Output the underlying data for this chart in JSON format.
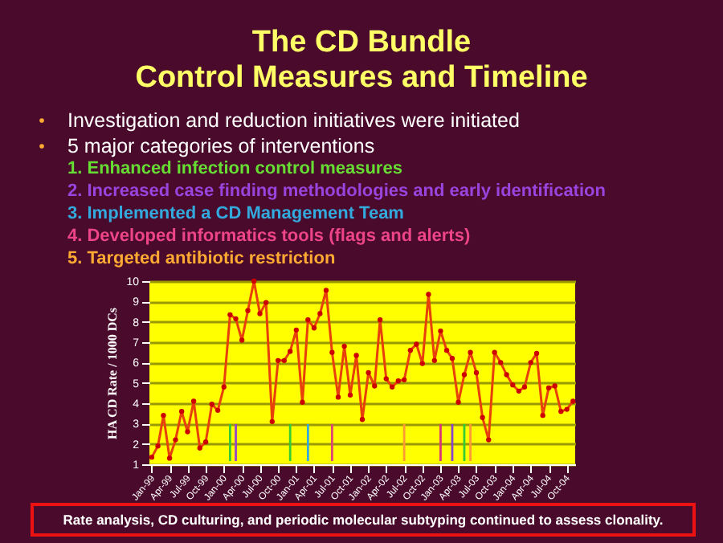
{
  "chart_data": {
    "type": "line",
    "title": "The CD Bundle\nControl Measures and Timeline",
    "ylabel": "HA CD Rate / 1000 DCs",
    "annotations": [
      "Investigation and reduction initiatives were initiated",
      "5 major categories of interventions",
      "1.   Enhanced infection control measures",
      "2.   Increased case finding methodologies and early identification",
      "3.   Implemented a CD Management Team",
      "4.   Developed informatics tools (flags and alerts)",
      "5.   Targeted antibiotic restriction",
      "Rate analysis, CD culturing, and periodic molecular subtyping continued to assess clonality."
    ],
    "x": [
      "1999-01",
      "1999-02",
      "1999-03",
      "1999-04",
      "1999-05",
      "1999-06",
      "1999-07",
      "1999-08",
      "1999-09",
      "1999-10",
      "1999-11",
      "1999-12",
      "2000-01",
      "2000-02",
      "2000-03",
      "2000-04",
      "2000-05",
      "2000-06",
      "2000-07",
      "2000-08",
      "2000-09",
      "2000-10",
      "2000-11",
      "2000-12",
      "2001-01",
      "2001-02",
      "2001-03",
      "2001-04",
      "2001-05",
      "2001-06",
      "2001-07",
      "2001-08",
      "2001-09",
      "2001-10",
      "2001-11",
      "2001-12",
      "2002-01",
      "2002-02",
      "2002-03",
      "2002-04",
      "2002-05",
      "2002-06",
      "2002-07",
      "2002-08",
      "2002-09",
      "2002-10",
      "2002-11",
      "2002-12",
      "2003-01",
      "2003-02",
      "2003-03",
      "2003-04",
      "2003-05",
      "2003-06",
      "2003-07",
      "2003-08",
      "2003-09",
      "2003-10",
      "2003-11",
      "2003-12",
      "2004-01",
      "2004-02",
      "2004-03",
      "2004-04",
      "2004-05",
      "2004-06",
      "2004-07",
      "2004-08",
      "2004-09",
      "2004-10",
      "2004-11"
    ],
    "series": [
      {
        "color": "#e8400a",
        "values": [
          1.35,
          1.9,
          3.4,
          1.3,
          2.2,
          3.6,
          2.6,
          4.1,
          1.8,
          2.1,
          3.95,
          3.65,
          4.8,
          8.35,
          8.15,
          7.1,
          8.55,
          10.0,
          8.4,
          8.95,
          3.1,
          6.1,
          6.1,
          6.55,
          7.6,
          4.05,
          8.1,
          7.7,
          8.4,
          9.55,
          6.5,
          4.3,
          6.8,
          4.4,
          6.35,
          3.2,
          5.5,
          4.85,
          8.1,
          5.2,
          4.8,
          5.1,
          5.15,
          6.6,
          6.9,
          5.95,
          9.35,
          6.1,
          7.55,
          6.6,
          6.2,
          4.05,
          5.4,
          6.5,
          5.5,
          3.3,
          2.2,
          6.5,
          6.0,
          5.4,
          4.9,
          4.6,
          4.8,
          6.0,
          6.45,
          3.4,
          4.75,
          4.85,
          3.6,
          3.7,
          4.1
        ]
      }
    ],
    "xlim": [
      "1998-12-20",
      "2004-11-12"
    ],
    "xticks": [
      {
        "value": "1999-01",
        "label": "Jan-99"
      },
      {
        "value": "1999-04",
        "label": "Apr-99"
      },
      {
        "value": "1999-07",
        "label": "Jul-99"
      },
      {
        "value": "1999-10",
        "label": "Oct-99"
      },
      {
        "value": "2000-01",
        "label": "Jan-00"
      },
      {
        "value": "2000-04",
        "label": "Apr-00"
      },
      {
        "value": "2000-07",
        "label": "Jul-00"
      },
      {
        "value": "2000-10",
        "label": "Oct-00"
      },
      {
        "value": "2001-01",
        "label": "Jan-01"
      },
      {
        "value": "2001-04",
        "label": "Apr-01"
      },
      {
        "value": "2001-07",
        "label": "Jul-01"
      },
      {
        "value": "2001-10",
        "label": "Oct-01"
      },
      {
        "value": "2002-01",
        "label": "Jan-02"
      },
      {
        "value": "2002-04",
        "label": "Apr-02"
      },
      {
        "value": "2002-07",
        "label": "Jul-02"
      },
      {
        "value": "2002-10",
        "label": "Oct-02"
      },
      {
        "value": "2003-01",
        "label": "Jan-03"
      },
      {
        "value": "2003-04",
        "label": "Apr-03"
      },
      {
        "value": "2003-07",
        "label": "Jul-03"
      },
      {
        "value": "2003-10",
        "label": "Oct-03"
      },
      {
        "value": "2004-01",
        "label": "Jan-04"
      },
      {
        "value": "2004-04",
        "label": "Apr-04"
      },
      {
        "value": "2004-07",
        "label": "Jul-04"
      },
      {
        "value": "2004-10",
        "label": "Oct-04"
      }
    ],
    "ylim": [
      1,
      10
    ],
    "yticks": [
      1,
      2,
      3,
      4,
      5,
      6,
      7,
      8,
      9,
      10
    ],
    "grid": "y",
    "marker": "circle",
    "line_style": "solid",
    "ref_lines": [
      {
        "axis": "x",
        "value": "2000-02",
        "color": "#33cc33"
      },
      {
        "axis": "x",
        "value": "2000-03",
        "color": "#9944cc"
      },
      {
        "axis": "x",
        "value": "2000-12",
        "color": "#33cc33"
      },
      {
        "axis": "x",
        "value": "2001-03",
        "color": "#33aadd"
      },
      {
        "axis": "x",
        "value": "2001-07",
        "color": "#dd4477"
      },
      {
        "axis": "x",
        "value": "2002-07",
        "color": "#ff9933"
      },
      {
        "axis": "x",
        "value": "2003-01",
        "color": "#dd3377"
      },
      {
        "axis": "x",
        "value": "2003-03",
        "color": "#8844cc"
      },
      {
        "axis": "x",
        "value": "2003-05",
        "color": "#33cc33"
      },
      {
        "axis": "x",
        "value": "2003-06",
        "color": "#ff9933"
      }
    ]
  }
}
